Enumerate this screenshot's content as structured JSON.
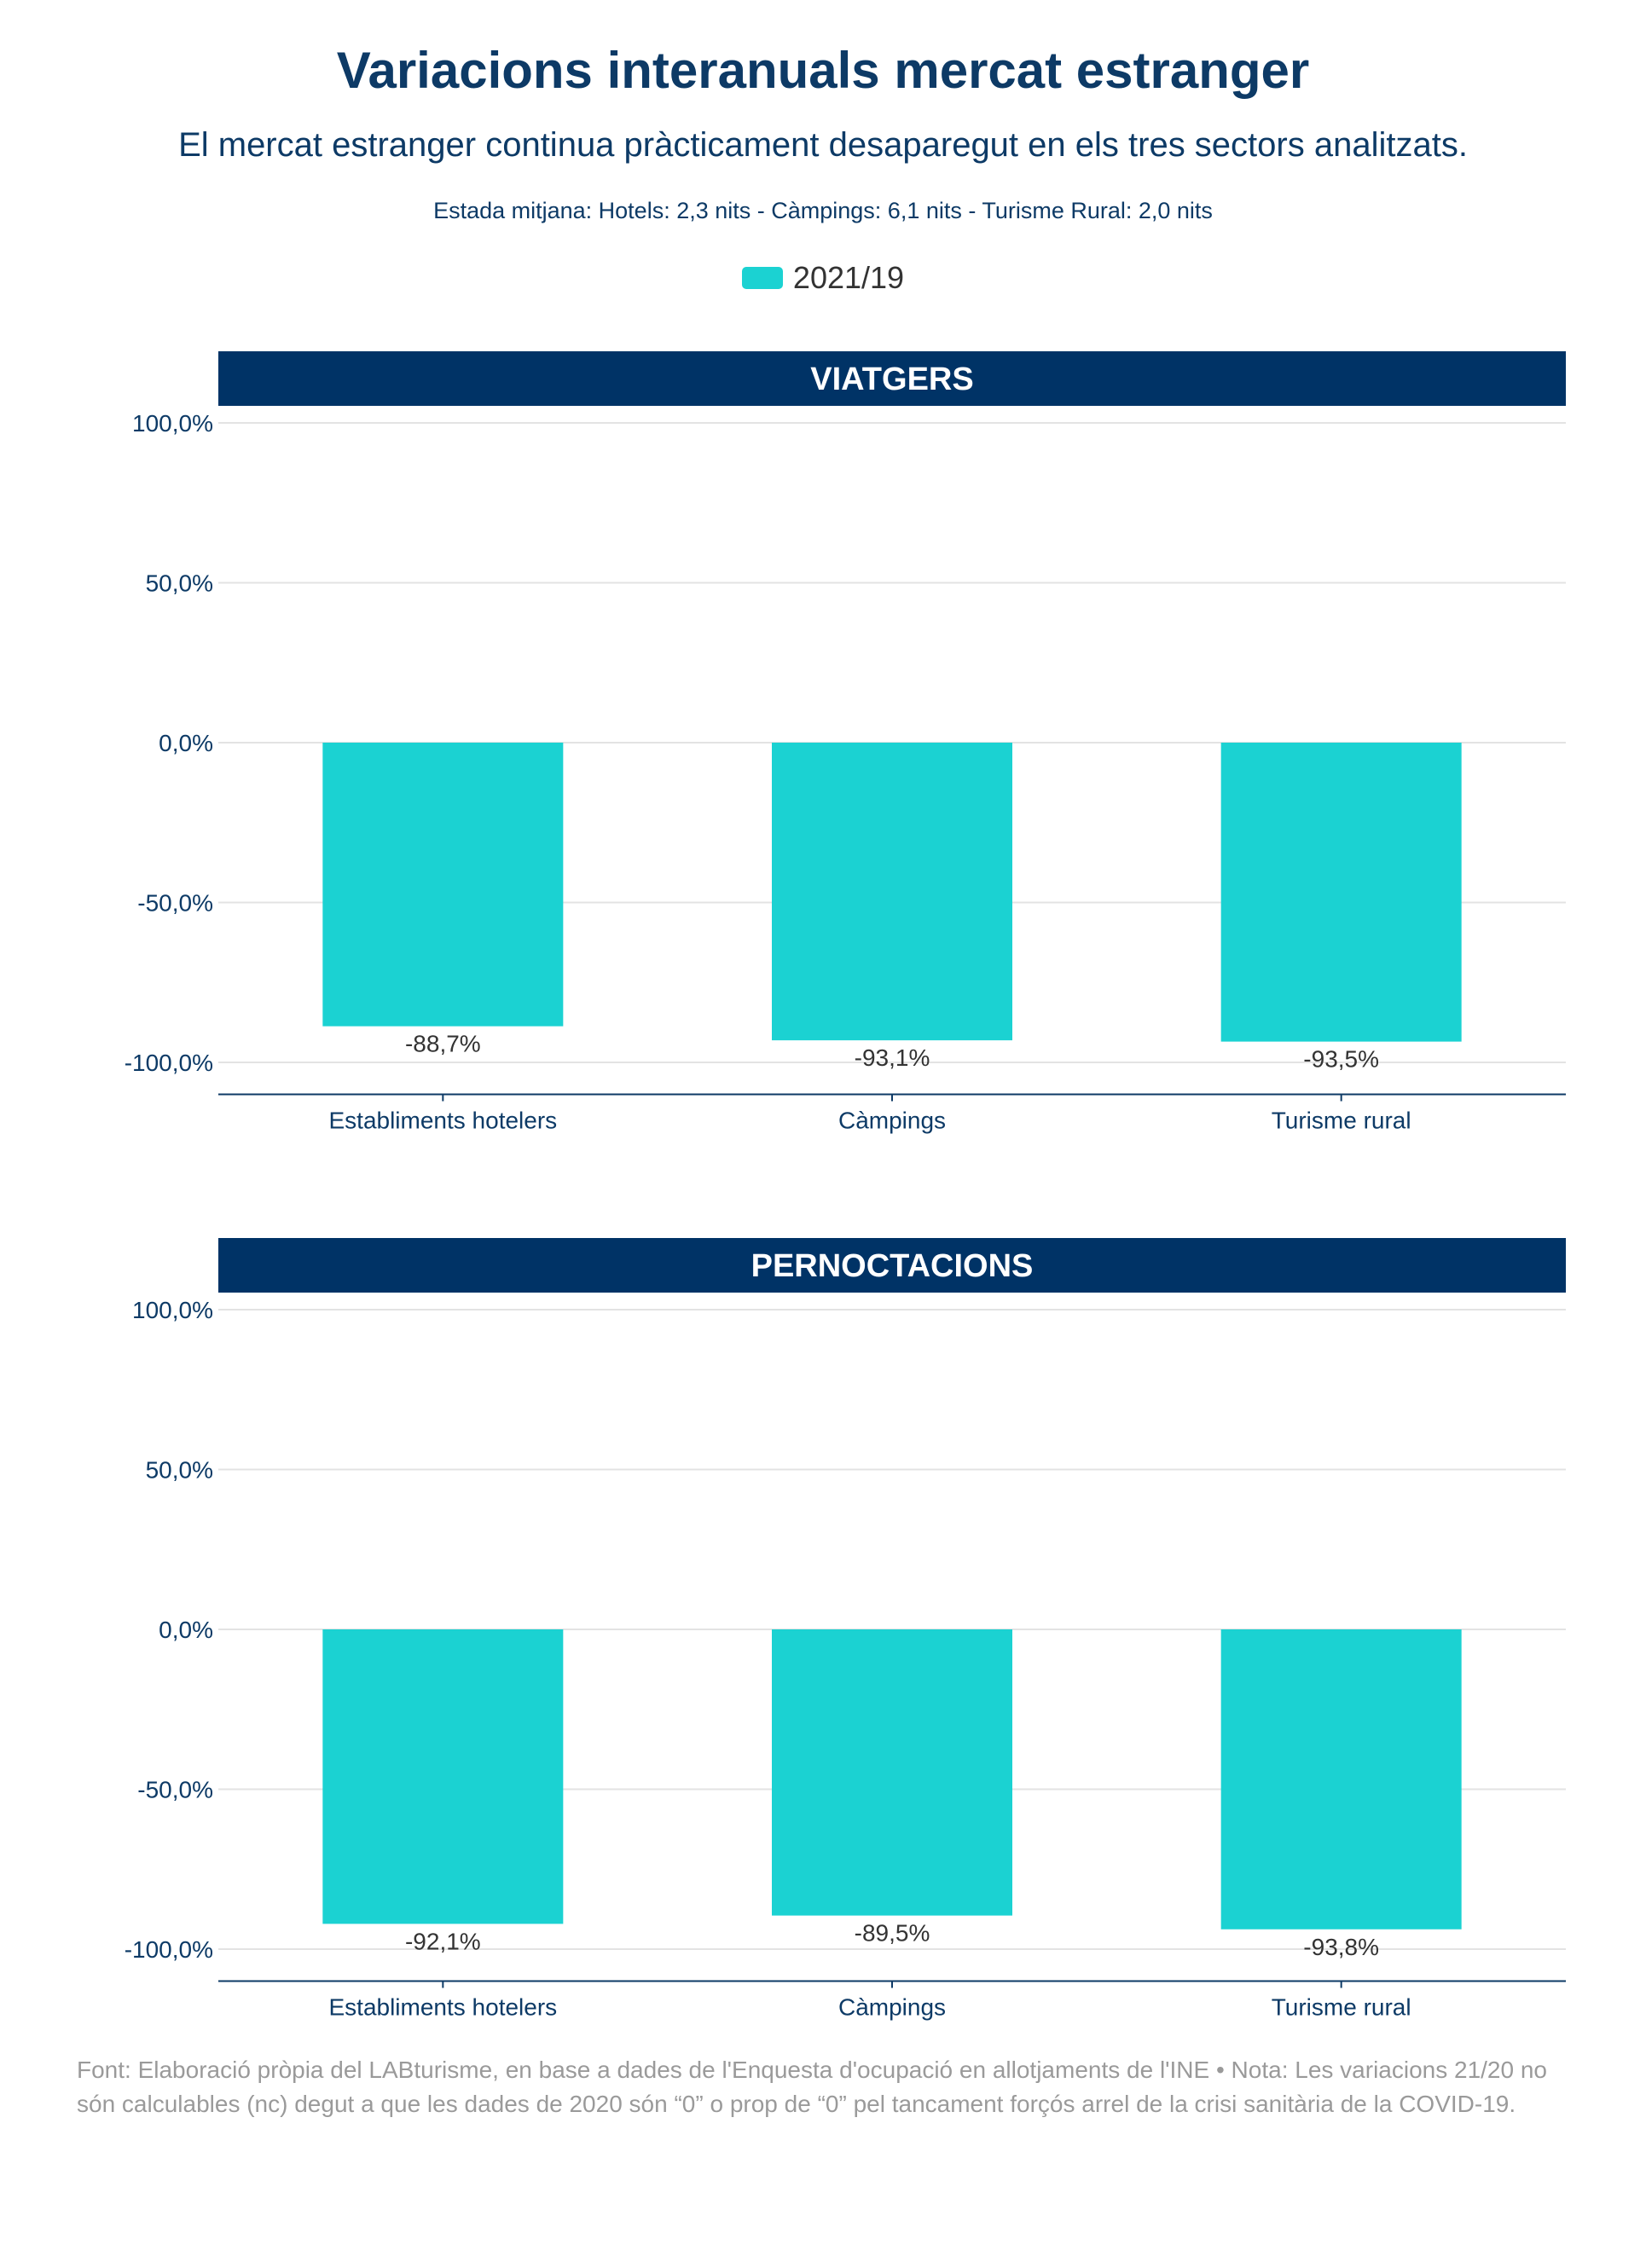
{
  "header": {
    "title": "Variacions interanuals mercat estranger",
    "subtitle": "El mercat estranger continua pràcticament desaparegut en els tres sectors analitzats.",
    "note": "Estada mitjana: Hotels: 2,3 nits - Càmpings: 6,1 nits - Turisme Rural: 2,0 nits"
  },
  "legend": {
    "label": "2021/19",
    "color": "#1bd2d2"
  },
  "colors": {
    "bar": "#1bd2d2",
    "header_bg": "#003366",
    "axis_text": "#0d3a66",
    "grid": "#e3e3e3",
    "label_text": "#333333"
  },
  "chart_data": [
    {
      "type": "bar",
      "title": "VIATGERS",
      "categories": [
        "Establiments hotelers",
        "Càmpings",
        "Turisme rural"
      ],
      "series": [
        {
          "name": "2021/19",
          "values": [
            -88.7,
            -93.1,
            -93.5
          ]
        }
      ],
      "value_labels": [
        "-88,7%",
        "-93,1%",
        "-93,5%"
      ],
      "ylim": [
        -110,
        100
      ],
      "yticks": [
        100,
        50,
        0,
        -50,
        -100
      ],
      "ytick_labels": [
        "100,0%",
        "50,0%",
        "0,0%",
        "-50,0%",
        "-100,0%"
      ],
      "grid": true,
      "legend": "top-center"
    },
    {
      "type": "bar",
      "title": "PERNOCTACIONS",
      "categories": [
        "Establiments hotelers",
        "Càmpings",
        "Turisme rural"
      ],
      "series": [
        {
          "name": "2021/19",
          "values": [
            -92.1,
            -89.5,
            -93.8
          ]
        }
      ],
      "value_labels": [
        "-92,1%",
        "-89,5%",
        "-93,8%"
      ],
      "ylim": [
        -110,
        100
      ],
      "yticks": [
        100,
        50,
        0,
        -50,
        -100
      ],
      "ytick_labels": [
        "100,0%",
        "50,0%",
        "0,0%",
        "-50,0%",
        "-100,0%"
      ],
      "grid": true,
      "legend": "top-center"
    }
  ],
  "footer": {
    "text": "Font: Elaboració pròpia del LABturisme, en base a dades de l'Enquesta d'ocupació en allotjaments de l'INE • Nota: Les variacions 21/20 no són calculables (nc) degut a que les dades de 2020 són “0” o prop de “0” pel tancament forçós arrel de la crisi sanitària de la COVID-19."
  }
}
